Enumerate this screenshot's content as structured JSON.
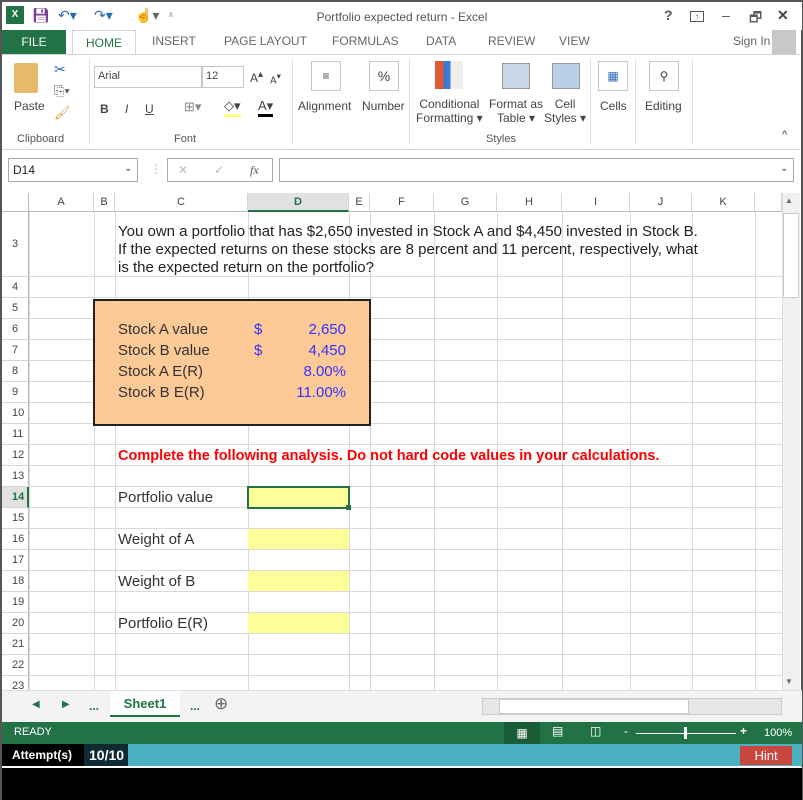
{
  "window": {
    "title": "Portfolio expected return - Excel",
    "help": "?",
    "minimize": "–",
    "restore": "🗗",
    "close": "✕"
  },
  "ribbon_tabs": {
    "file": "FILE",
    "home": "HOME",
    "others": [
      "INSERT",
      "PAGE LAYOUT",
      "FORMULAS",
      "DATA",
      "REVIEW",
      "VIEW"
    ],
    "sign_in": "Sign In"
  },
  "ribbon": {
    "paste": "Paste",
    "clipboard": "Clipboard",
    "font_name": "Arial",
    "font_size": "12",
    "bold": "B",
    "italic": "I",
    "underline": "U",
    "font": "Font",
    "alignment": "Alignment",
    "number": "Number",
    "number_icon": "%",
    "conditional": [
      "Conditional",
      "Formatting ▾"
    ],
    "format_table": [
      "Format as",
      "Table ▾"
    ],
    "cell_styles": [
      "Cell",
      "Styles ▾"
    ],
    "styles": "Styles",
    "cells": "Cells",
    "editing": "Editing"
  },
  "formula_bar": {
    "name_box": "D14",
    "fx": "fx",
    "cancel": "✕",
    "enter": "✓",
    "formula": ""
  },
  "columns": [
    "A",
    "B",
    "C",
    "D",
    "E",
    "F",
    "G",
    "H",
    "I",
    "J",
    "K"
  ],
  "selected_column": "D",
  "selected_row": "14",
  "rows": [
    "3",
    "4",
    "5",
    "6",
    "7",
    "8",
    "9",
    "10",
    "11",
    "12",
    "13",
    "14",
    "15",
    "16",
    "17",
    "18",
    "19",
    "20",
    "21",
    "22",
    "23"
  ],
  "question": [
    "You own a portfolio that has $2,650 invested in Stock A and $4,450 invested in Stock B.",
    "If the expected returns on these stocks are 8 percent and 11 percent, respectively, what",
    "is the expected return on the portfolio?"
  ],
  "inputs": [
    {
      "label": "Stock A value",
      "currency": "$",
      "value": "2,650"
    },
    {
      "label": "Stock B value",
      "currency": "$",
      "value": "4,450"
    },
    {
      "label": "Stock A E(R)",
      "currency": "",
      "value": "8.00%"
    },
    {
      "label": "Stock B E(R)",
      "currency": "",
      "value": "11.00%"
    }
  ],
  "instruction": "Complete the following analysis. Do not hard code values in your calculations.",
  "analysis": [
    {
      "label": "Portfolio value",
      "value": ""
    },
    {
      "label": "Weight of A",
      "value": ""
    },
    {
      "label": "Weight of B",
      "value": ""
    },
    {
      "label": "Portfolio E(R)",
      "value": ""
    }
  ],
  "colors": {
    "excel_green": "#217346",
    "input_box": "#fdc997",
    "answer_cell": "#ffff99",
    "input_text": "#3333ff",
    "instruction": "#ff0000",
    "attempt_bar": "#4bb2c4",
    "hint": "#c9473d"
  },
  "sheets": {
    "nav_more": "...",
    "active": "Sheet1",
    "add": "⊕"
  },
  "status": {
    "ready": "READY",
    "zoom": "100%"
  },
  "attempts": {
    "label": "Attempt(s)",
    "value": "10/10",
    "hint": "Hint"
  }
}
